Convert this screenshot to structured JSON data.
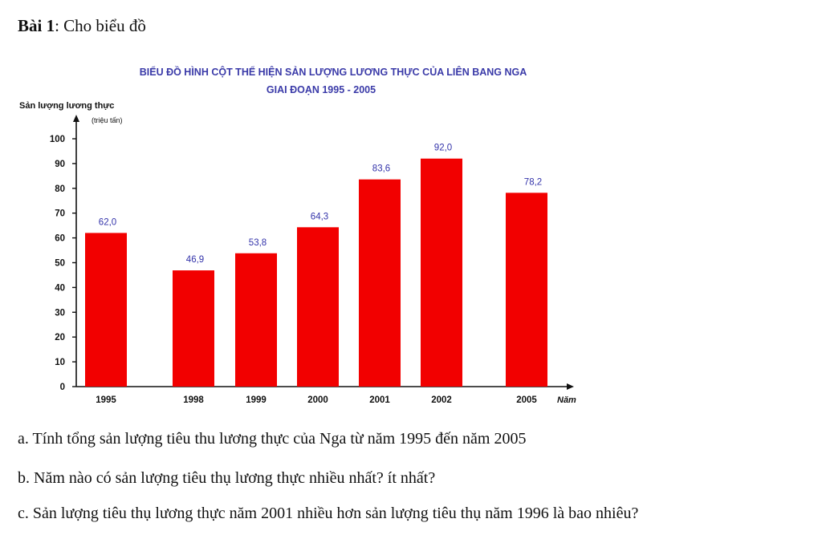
{
  "exercise": {
    "label": "Bài 1",
    "text": ": Cho biểu đồ"
  },
  "chart_data": {
    "type": "bar",
    "title": "BIỂU ĐỒ HÌNH CỘT THỂ HIỆN SẢN LƯỢNG LƯƠNG THỰC CỦA LIÊN BANG NGA",
    "subtitle": "GIAI ĐOẠN 1995 - 2005",
    "ylabel": "Sản lượng lương thực",
    "yunit": "(triệu tấn)",
    "xlabel": "Năm",
    "categories": [
      "1995",
      "1998",
      "1999",
      "2000",
      "2001",
      "2002",
      "2005"
    ],
    "values": [
      62.0,
      46.9,
      53.8,
      64.3,
      83.6,
      92.0,
      78.2
    ],
    "value_labels": [
      "62,0",
      "46,9",
      "53,8",
      "64,3",
      "83,6",
      "92,0",
      "78,2"
    ],
    "ylim": [
      0,
      100
    ],
    "yticks": [
      0,
      10,
      20,
      30,
      40,
      50,
      60,
      70,
      80,
      90,
      100
    ],
    "grid": false,
    "bar_color": "#f20000",
    "title_color": "#3a3aa8",
    "value_label_color": "#3333aa"
  },
  "questions": [
    "a. Tính tổng sản lượng tiêu thu lương thực của Nga từ năm 1995 đến năm 2005",
    "b. Năm nào có sản lượng tiêu thụ lương thực nhiều nhất? ít nhất?",
    "c. Sản lượng tiêu thụ lương thực năm 2001 nhiều hơn sản lượng tiêu thụ năm 1996 là bao nhiêu?"
  ]
}
